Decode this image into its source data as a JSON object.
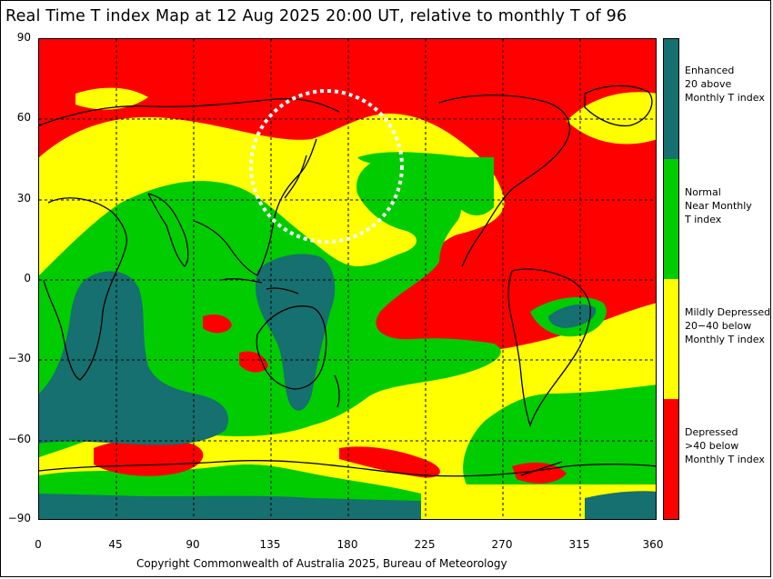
{
  "title": "Real Time T index Map at 12 Aug 2025 20:00 UT, relative to monthly T of 96",
  "copyright": "Copyright Commonwealth of Australia 2025, Bureau of Meteorology",
  "axes": {
    "y_ticks": [
      "90",
      "60",
      "30",
      "0",
      "−30",
      "−60",
      "−90"
    ],
    "x_ticks": [
      "0",
      "45",
      "90",
      "135",
      "180",
      "225",
      "270",
      "315",
      "360"
    ]
  },
  "legend": [
    {
      "lines": [
        "Enhanced",
        "20 above",
        "Monthly T index"
      ],
      "color": "#16706f"
    },
    {
      "lines": [
        "Normal",
        "Near Monthly",
        "T index"
      ],
      "color": "#00cc00"
    },
    {
      "lines": [
        "Mildly Depressed",
        "20−40 below",
        "Monthly T index"
      ],
      "color": "#ffff00"
    },
    {
      "lines": [
        "Depressed",
        ">40 below",
        "Monthly T index"
      ],
      "color": "#ff0000"
    }
  ],
  "colors": {
    "enhanced": "#16706f",
    "normal": "#00cc00",
    "mildly_depressed": "#ffff00",
    "depressed": "#ff0000",
    "highlight_circle": "#ffffff"
  }
}
